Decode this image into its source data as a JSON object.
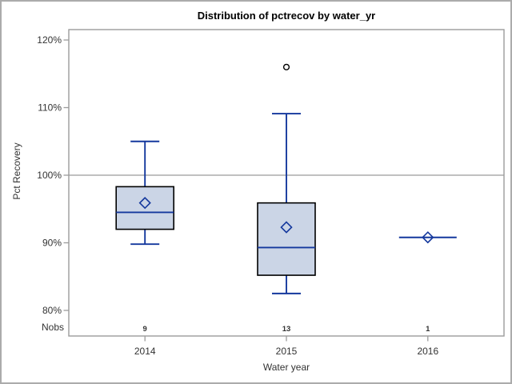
{
  "chart_data": {
    "type": "boxplot",
    "title": "Distribution of pctrecov by water_yr",
    "xlabel": "Water year",
    "ylabel": "Pct Recovery",
    "nobs_label": "Nobs",
    "categories": [
      "2014",
      "2015",
      "2016"
    ],
    "nobs": [
      "9",
      "13",
      "1"
    ],
    "y_ticks": [
      80,
      90,
      100,
      110,
      120
    ],
    "y_tick_labels": [
      "80%",
      "90%",
      "100%",
      "110%",
      "120%"
    ],
    "ylim": [
      76.2,
      121.5
    ],
    "refline": 100,
    "series": [
      {
        "category": "2014",
        "n": 9,
        "whisker_low": 89.8,
        "q1": 92.0,
        "median": 94.5,
        "mean": 95.9,
        "q3": 98.3,
        "whisker_high": 105.0,
        "outliers": []
      },
      {
        "category": "2015",
        "n": 13,
        "whisker_low": 82.5,
        "q1": 85.2,
        "median": 89.3,
        "mean": 92.3,
        "q3": 95.9,
        "whisker_high": 109.1,
        "outliers": [
          116.0
        ]
      },
      {
        "category": "2016",
        "n": 1,
        "whisker_low": 90.8,
        "q1": 90.8,
        "median": 90.8,
        "mean": 90.8,
        "q3": 90.8,
        "whisker_high": 90.8,
        "outliers": []
      }
    ],
    "layout": {
      "legend": "none",
      "grid": "refline-only",
      "mean_marker": "diamond",
      "outlier_marker": "circle"
    },
    "colors": {
      "box_fill": "#cbd5e6",
      "box_border": "#000000",
      "line": "#14389d",
      "frame": "#9b9b9b",
      "gridline": "#ababab",
      "outlier": "#000000",
      "tick_text": "#333333",
      "background": "#ffffff"
    }
  }
}
